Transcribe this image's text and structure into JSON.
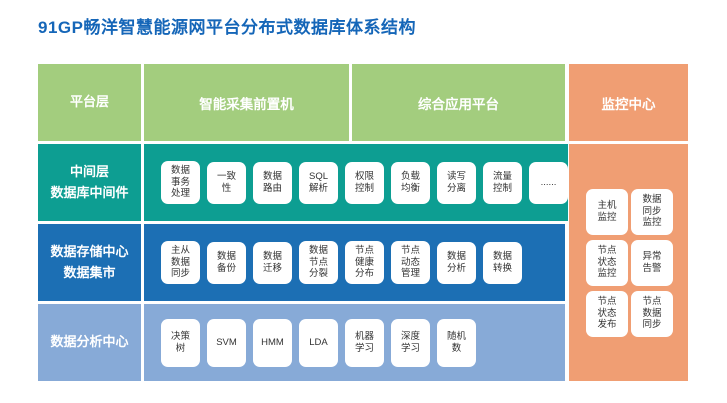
{
  "title": "91GP畅洋智慧能源网平台分布式数据库体系结构",
  "colors": {
    "title_blue": "#1566B8",
    "green": "#A3CD7E",
    "teal": "#0D9E92",
    "blue": "#1C6FB4",
    "light_blue": "#87AAD7",
    "orange": "#F09E73"
  },
  "header": {
    "platform_label": "平台层",
    "acquisition_label": "智能采集前置机",
    "application_label": "综合应用平台"
  },
  "middleware_row": {
    "label": "中间层\n数据库中间件",
    "boxes": [
      "数据\n事务\n处理",
      "一致\n性",
      "数据\n路由",
      "SQL\n解析",
      "权限\n控制",
      "负载\n均衡",
      "读写\n分离",
      "流量\n控制",
      "......"
    ]
  },
  "storage_row": {
    "label": "数据存储中心\n数据集市",
    "boxes": [
      "主从\n数据\n同步",
      "数据\n备份",
      "数据\n迁移",
      "数据\n节点\n分裂",
      "节点\n健康\n分布",
      "节点\n动态\n管理",
      "数据\n分析",
      "数据\n转换"
    ]
  },
  "analysis_row": {
    "label": "数据分析中心",
    "boxes": [
      "决策\n树",
      "SVM",
      "HMM",
      "LDA",
      "机器\n学习",
      "深度\n学习",
      "随机\n数"
    ]
  },
  "monitor": {
    "label": "监控中心",
    "boxes": [
      "主机\n监控",
      "数据\n同步\n监控",
      "节点\n状态\n监控",
      "异常\n告警",
      "节点\n状态\n发布",
      "节点\n数据\n同步"
    ]
  }
}
